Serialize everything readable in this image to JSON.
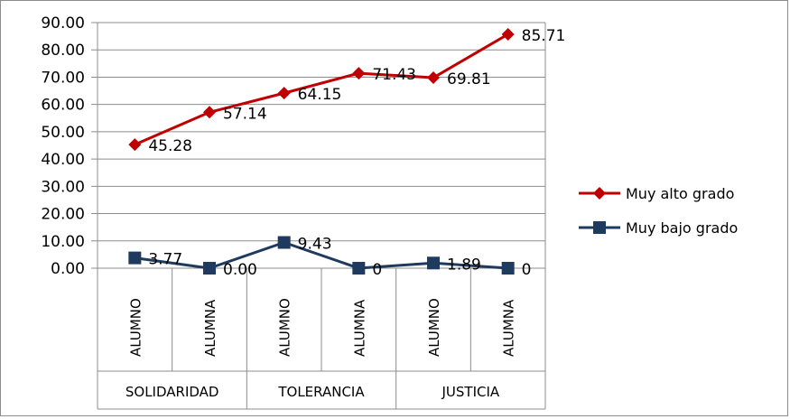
{
  "chart_data": {
    "type": "line",
    "groups": [
      "SOLIDARIDAD",
      "TOLERANCIA",
      "JUSTICIA"
    ],
    "categories": [
      "ALUMNO",
      "ALUMNA",
      "ALUMNO",
      "ALUMNA",
      "ALUMNO",
      "ALUMNA"
    ],
    "ylim": [
      0,
      90
    ],
    "yticks": [
      "0.00",
      "10.00",
      "20.00",
      "30.00",
      "40.00",
      "50.00",
      "60.00",
      "70.00",
      "80.00",
      "90.00"
    ],
    "grid": true,
    "legend_position": "right",
    "series": [
      {
        "name": "Muy alto grado",
        "color": "#c00000",
        "marker": "diamond",
        "values": [
          45.28,
          57.14,
          64.15,
          71.43,
          69.81,
          85.71
        ],
        "labels": [
          "45.28",
          "57.14",
          "64.15",
          "71.43",
          "69.81",
          "85.71"
        ]
      },
      {
        "name": "Muy bajo grado",
        "color": "#1f3a5f",
        "marker": "square",
        "values": [
          3.77,
          0.0,
          9.43,
          0,
          1.89,
          0
        ],
        "labels": [
          "3.77",
          "0.00",
          "9.43",
          "0",
          "1.89",
          "0"
        ]
      }
    ]
  }
}
